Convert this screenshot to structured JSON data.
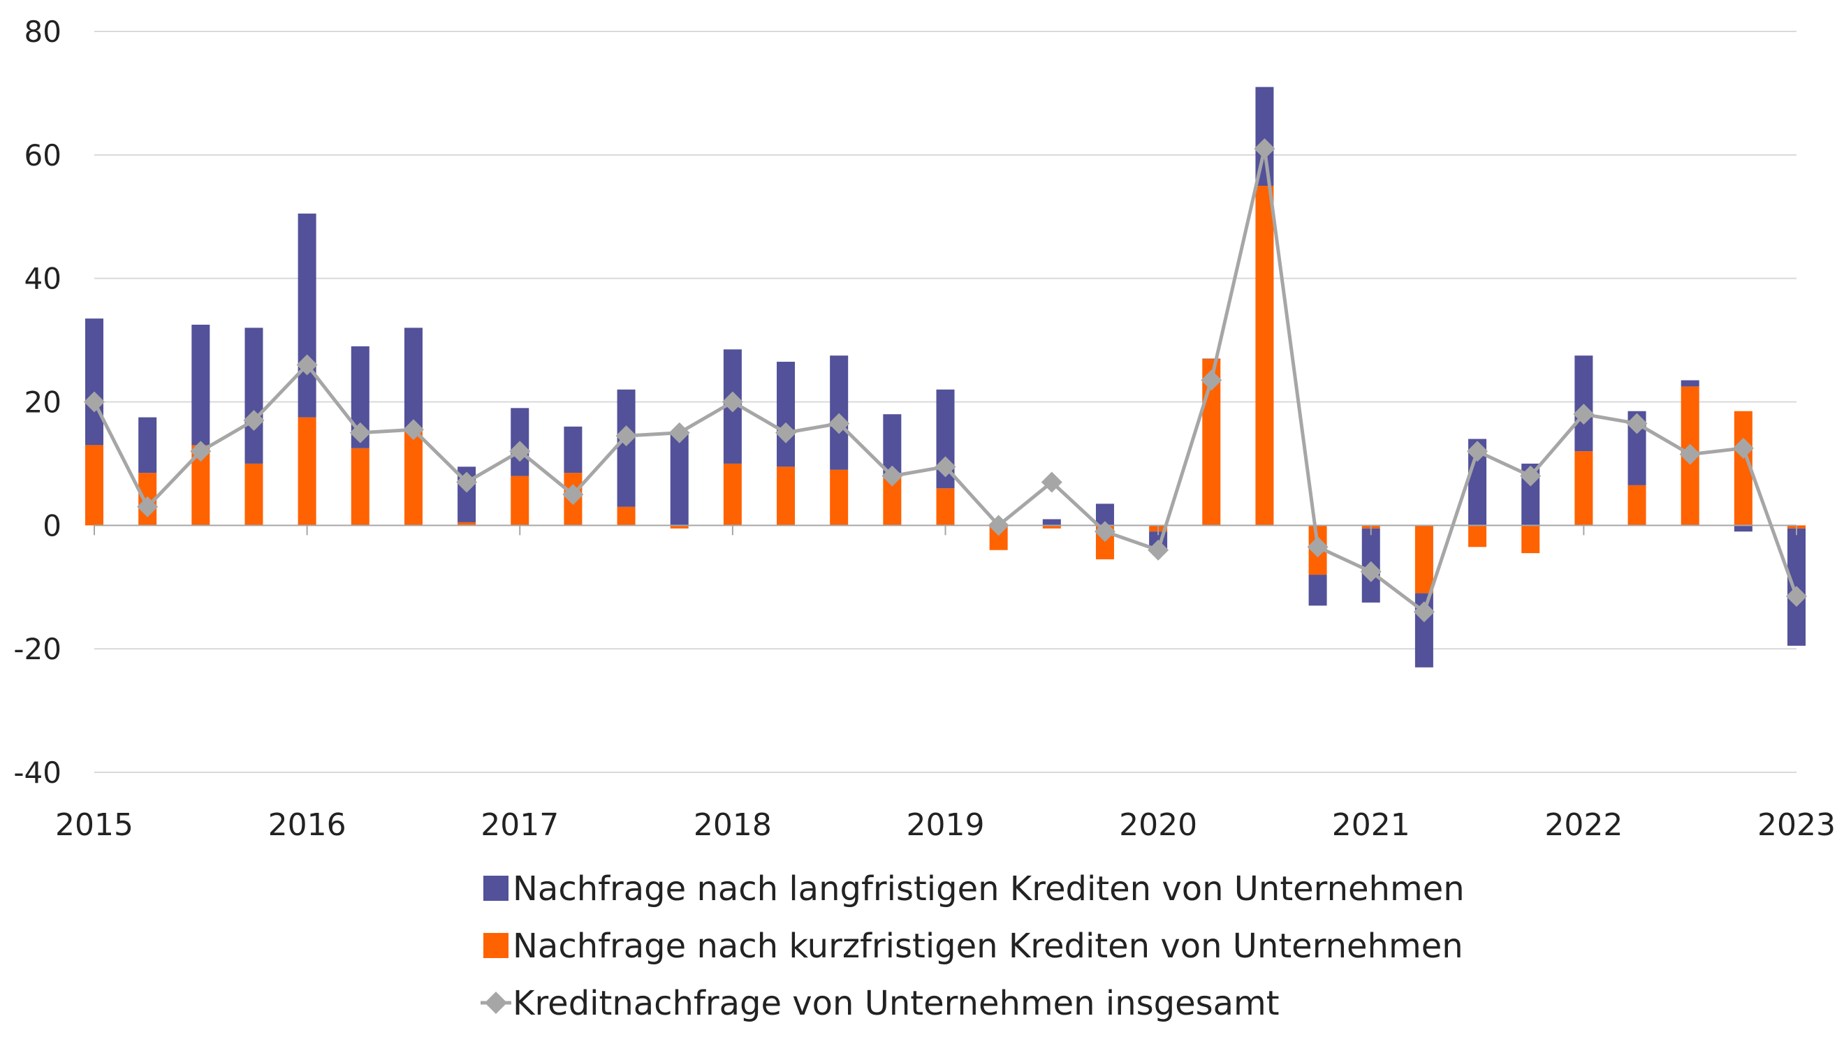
{
  "chart_data": {
    "type": "bar",
    "stacked": true,
    "title": "",
    "xlabel": "",
    "ylabel": "",
    "ylim": [
      -40,
      80
    ],
    "yticks": [
      80,
      60,
      40,
      20,
      0,
      -20,
      -40
    ],
    "x_year_labels": [
      "2015",
      "2016",
      "2017",
      "2018",
      "2019",
      "2020",
      "2021",
      "2022",
      "2023"
    ],
    "categories": [
      "2015 Q1",
      "2015 Q2",
      "2015 Q3",
      "2015 Q4",
      "2016 Q1",
      "2016 Q2",
      "2016 Q3",
      "2016 Q4",
      "2017 Q1",
      "2017 Q2",
      "2017 Q3",
      "2017 Q4",
      "2018 Q1",
      "2018 Q2",
      "2018 Q3",
      "2018 Q4",
      "2019 Q1",
      "2019 Q2",
      "2019 Q3",
      "2019 Q4",
      "2020 Q1",
      "2020 Q2",
      "2020 Q3",
      "2020 Q4",
      "2021 Q1",
      "2021 Q2",
      "2021 Q3",
      "2021 Q4",
      "2022 Q1",
      "2022 Q2",
      "2022 Q3",
      "2022 Q4",
      "2023 Q1"
    ],
    "gridlines": true,
    "legend_position": "bottom",
    "series": [
      {
        "name": "Nachfrage nach langfristigen Krediten von Unternehmen",
        "type": "bar",
        "color": "#525199",
        "values": [
          20.5,
          9,
          19.5,
          22,
          33,
          16.5,
          16.5,
          9,
          11,
          7.5,
          19,
          15,
          18.5,
          17,
          18.5,
          10,
          16,
          0,
          1,
          3.5,
          -3,
          0,
          16,
          -5,
          -12,
          -12,
          14,
          10,
          15.5,
          12,
          1,
          -1,
          -19
        ]
      },
      {
        "name": "Nachfrage nach kurzfristigen Krediten von Unternehmen",
        "type": "bar",
        "color": "#FF6200",
        "values": [
          13,
          8.5,
          13,
          10,
          17.5,
          12.5,
          15.5,
          0.5,
          8,
          8.5,
          3,
          -0.5,
          10,
          9.5,
          9,
          8,
          6,
          -4,
          -0.5,
          -5.5,
          -1,
          27,
          55,
          -8,
          -0.5,
          -11,
          -3.5,
          -4.5,
          12,
          6.5,
          22.5,
          18.5,
          -0.5
        ]
      },
      {
        "name": "Kreditnachfrage von Unternehmen insgesamt",
        "type": "line",
        "color": "#A6A6A6",
        "marker": "diamond",
        "values": [
          20,
          3,
          12,
          17,
          26,
          15,
          15.5,
          7,
          12,
          5,
          14.5,
          15,
          20,
          15,
          16.5,
          8,
          9.5,
          0,
          7,
          -1,
          -4,
          23.5,
          61,
          -3.5,
          -7.5,
          -14,
          12,
          8,
          18,
          16.5,
          11.5,
          12.5,
          -11.5
        ]
      }
    ]
  }
}
